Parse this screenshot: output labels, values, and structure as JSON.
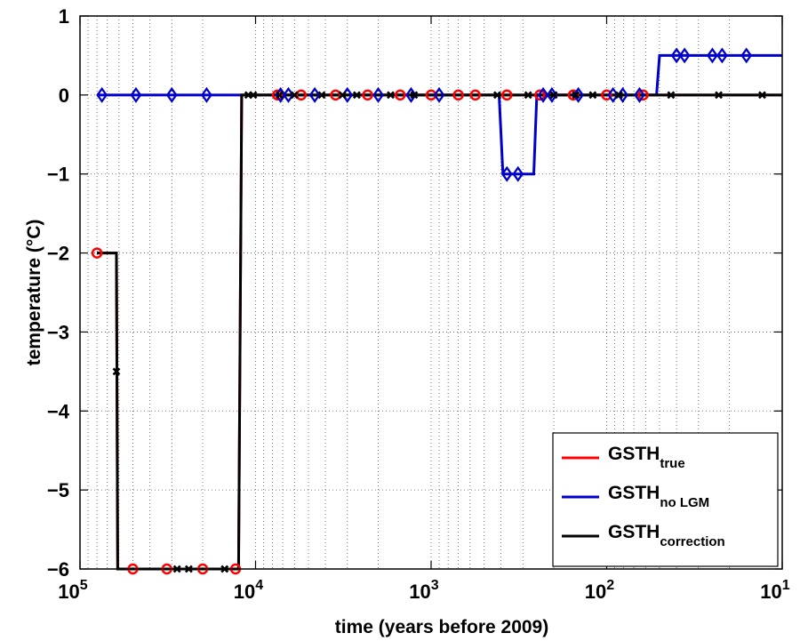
{
  "chart_data": {
    "type": "line",
    "xlabel": "time (years before 2009)",
    "ylabel": "temperature (°C)",
    "x_scale": "log",
    "x_reversed": true,
    "xlim": [
      100000,
      10
    ],
    "ylim": [
      -6,
      1
    ],
    "x_ticks": [
      {
        "value": 100000,
        "base": "10",
        "exp": "5"
      },
      {
        "value": 10000,
        "base": "10",
        "exp": "4"
      },
      {
        "value": 1000,
        "base": "10",
        "exp": "3"
      },
      {
        "value": 100,
        "base": "10",
        "exp": "2"
      },
      {
        "value": 10,
        "base": "10",
        "exp": "1"
      }
    ],
    "y_ticks": [
      {
        "value": 1,
        "label": "1"
      },
      {
        "value": 0,
        "label": "0"
      },
      {
        "value": -1,
        "label": "−1"
      },
      {
        "value": -2,
        "label": "−2"
      },
      {
        "value": -3,
        "label": "−3"
      },
      {
        "value": -4,
        "label": "−4"
      },
      {
        "value": -5,
        "label": "−5"
      },
      {
        "value": -6,
        "label": "−6"
      }
    ],
    "grid": true,
    "legend_position": "bottom-right",
    "series": [
      {
        "name": "GSTH",
        "subscript": "true",
        "color": "#ff0000",
        "marker": "circle",
        "points": [
          [
            80000,
            -2
          ],
          [
            62000,
            -2
          ],
          [
            61000,
            -6
          ],
          [
            12500,
            -6
          ],
          [
            12000,
            0
          ],
          [
            10,
            0
          ]
        ],
        "markers": [
          [
            80000,
            -2
          ],
          [
            50000,
            -6
          ],
          [
            32000,
            -6
          ],
          [
            20000,
            -6
          ],
          [
            13000,
            -6
          ],
          [
            7500,
            0
          ],
          [
            5500,
            0
          ],
          [
            3500,
            0
          ],
          [
            2300,
            0
          ],
          [
            1500,
            0
          ],
          [
            1000,
            0
          ],
          [
            700,
            0
          ],
          [
            560,
            0
          ],
          [
            370,
            0
          ],
          [
            240,
            0
          ],
          [
            155,
            0
          ],
          [
            100,
            0
          ],
          [
            62,
            0
          ]
        ]
      },
      {
        "name": "GSTH",
        "subscript": "no LGM",
        "color": "#0000cc",
        "marker": "diamond",
        "points": [
          [
            80000,
            0
          ],
          [
            410,
            0
          ],
          [
            390,
            -1
          ],
          [
            260,
            -1
          ],
          [
            250,
            0
          ],
          [
            52,
            0
          ],
          [
            50,
            0.5
          ],
          [
            10,
            0.5
          ]
        ],
        "markers": [
          [
            75000,
            0
          ],
          [
            48000,
            0
          ],
          [
            30000,
            0
          ],
          [
            19000,
            0
          ],
          [
            7200,
            0
          ],
          [
            6500,
            0
          ],
          [
            4600,
            0
          ],
          [
            3000,
            0
          ],
          [
            2000,
            0
          ],
          [
            1300,
            0
          ],
          [
            900,
            0
          ],
          [
            370,
            -1
          ],
          [
            320,
            -1
          ],
          [
            230,
            0
          ],
          [
            205,
            0
          ],
          [
            145,
            0
          ],
          [
            92,
            0
          ],
          [
            81,
            0
          ],
          [
            65,
            0
          ],
          [
            40,
            0.5
          ],
          [
            36,
            0.5
          ],
          [
            25,
            0.5
          ],
          [
            22,
            0.5
          ],
          [
            16,
            0.5
          ]
        ]
      },
      {
        "name": "GSTH",
        "subscript": "correction",
        "color": "#000000",
        "marker": "x",
        "points": [
          [
            80000,
            -2
          ],
          [
            62000,
            -2
          ],
          [
            61000,
            -6
          ],
          [
            12500,
            -6
          ],
          [
            12000,
            0
          ],
          [
            10,
            0
          ]
        ],
        "markers": [
          [
            62000,
            -3.5
          ],
          [
            28000,
            -6
          ],
          [
            24000,
            -6
          ],
          [
            15000,
            -6
          ],
          [
            11000,
            0
          ],
          [
            10300,
            0
          ],
          [
            7300,
            0
          ],
          [
            6000,
            0
          ],
          [
            4200,
            0
          ],
          [
            3200,
            0
          ],
          [
            2650,
            0
          ],
          [
            1700,
            0
          ],
          [
            1250,
            0
          ],
          [
            420,
            0
          ],
          [
            280,
            0
          ],
          [
            200,
            0
          ],
          [
            150,
            0
          ],
          [
            120,
            0
          ],
          [
            85,
            0
          ],
          [
            43,
            0
          ],
          [
            23,
            0
          ],
          [
            13,
            0
          ]
        ]
      }
    ]
  }
}
